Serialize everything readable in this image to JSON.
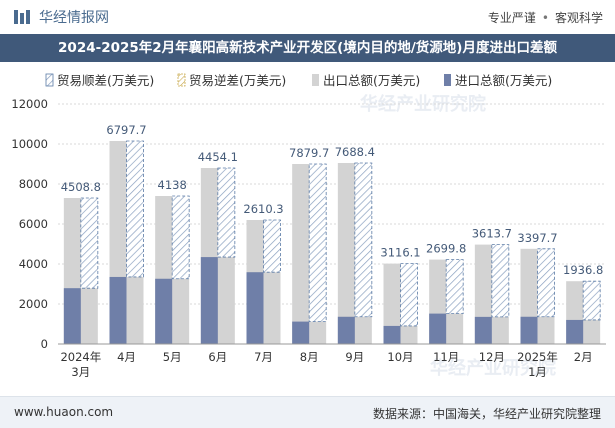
{
  "header": {
    "brand": "华经情报网",
    "tags": [
      "专业严谨",
      "客观科学"
    ]
  },
  "title": "2024-2025年2月年襄阳高新技术产业开发区(境内目的地/货源地)月度进出口差额",
  "footer": {
    "left": "www.huaon.com",
    "right": "数据来源：中国海关，华经产业研究院整理"
  },
  "watermark": "华经产业研究院",
  "colors": {
    "export": "#d3d3d3",
    "import": "#6f7fa8",
    "surplus": "#5b7ba6",
    "title_bg": "#40597a",
    "label": "#445a78"
  },
  "chart_data": {
    "type": "bar",
    "title": "2024-2025年2月年襄阳高新技术产业开发区(境内目的地/货源地)月度进出口差额",
    "categories": [
      "2024年\n3月",
      "4月",
      "5月",
      "6月",
      "7月",
      "8月",
      "9月",
      "10月",
      "11月",
      "12月",
      "2025年\n1月",
      "2月"
    ],
    "series": [
      {
        "name": "贸易顺差(万美元)",
        "values": [
          4508.8,
          6797.7,
          4138,
          4454.1,
          2610.3,
          7879.7,
          7688.4,
          3116.1,
          2699.8,
          3613.7,
          3397.7,
          1936.8
        ]
      },
      {
        "name": "贸易逆差(万美元)",
        "values": [
          0,
          0,
          0,
          0,
          0,
          0,
          0,
          0,
          0,
          0,
          0,
          0
        ]
      },
      {
        "name": "出口总额(万美元)",
        "values": [
          7300,
          10150,
          7400,
          8800,
          6200,
          9000,
          9050,
          4020,
          4220,
          4970,
          4760,
          3140
        ]
      },
      {
        "name": "进口总额(万美元)",
        "values": [
          2791.2,
          3352.3,
          3262,
          4345.9,
          3589.7,
          1120.3,
          1361.6,
          903.9,
          1520.2,
          1356.3,
          1362.3,
          1203.2
        ]
      }
    ],
    "data_labels": [
      "4508.8",
      "6797.7",
      "4138",
      "4454.1",
      "2610.3",
      "7879.7",
      "7688.4",
      "3116.1",
      "2699.8",
      "3613.7",
      "3397.7",
      "1936.8"
    ],
    "yticks": [
      "0",
      "2000",
      "4000",
      "6000",
      "8000",
      "10000",
      "12000"
    ],
    "ylim": [
      0,
      12000
    ],
    "xlabel": "",
    "ylabel": "",
    "legend_position": "top-left",
    "grid": true
  }
}
